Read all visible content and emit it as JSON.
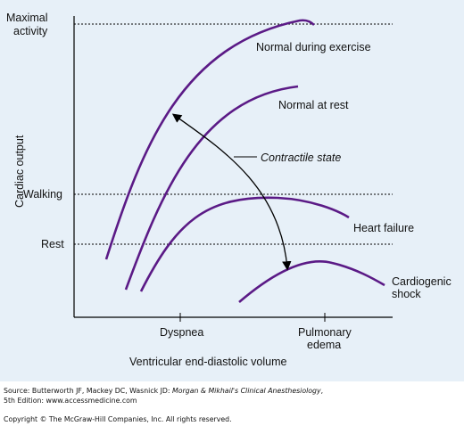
{
  "chart_data": {
    "type": "line",
    "title": "",
    "xlabel": "Ventricular end-diastolic volume",
    "ylabel": "Cardiac output",
    "x_ticks": [
      "Dyspnea",
      "Pulmonary edema"
    ],
    "y_levels": [
      "Maximal activity",
      "Walking",
      "Rest"
    ],
    "grid": false,
    "series": [
      {
        "name": "Normal during exercise",
        "points": [
          [
            0.18,
            0.23
          ],
          [
            0.24,
            0.45
          ],
          [
            0.3,
            0.64
          ],
          [
            0.36,
            0.77
          ],
          [
            0.44,
            0.89
          ],
          [
            0.51,
            0.96
          ],
          [
            0.56,
            1.0
          ],
          [
            0.6,
            0.99
          ]
        ]
      },
      {
        "name": "Normal at rest",
        "points": [
          [
            0.21,
            0.1
          ],
          [
            0.26,
            0.31
          ],
          [
            0.31,
            0.48
          ],
          [
            0.37,
            0.61
          ],
          [
            0.45,
            0.72
          ],
          [
            0.53,
            0.79
          ],
          [
            0.57,
            0.81
          ]
        ]
      },
      {
        "name": "Heart failure",
        "points": [
          [
            0.27,
            0.11
          ],
          [
            0.32,
            0.24
          ],
          [
            0.38,
            0.33
          ],
          [
            0.45,
            0.41
          ],
          [
            0.52,
            0.45
          ],
          [
            0.58,
            0.45
          ],
          [
            0.64,
            0.42
          ],
          [
            0.7,
            0.38
          ]
        ]
      },
      {
        "name": "Cardiogenic shock",
        "points": [
          [
            0.46,
            0.06
          ],
          [
            0.52,
            0.13
          ],
          [
            0.58,
            0.19
          ],
          [
            0.64,
            0.2
          ],
          [
            0.7,
            0.18
          ],
          [
            0.76,
            0.13
          ],
          [
            0.8,
            0.1
          ]
        ]
      }
    ],
    "annotation": "Contractile state",
    "colors": {
      "curve": "#5b1a86",
      "reference": "#000000",
      "background": "#e7f0f8"
    }
  },
  "labels": {
    "maximal_line1": "Maximal",
    "maximal_line2": "activity",
    "walking": "Walking",
    "rest": "Rest",
    "ylabel": "Cardiac output",
    "dyspnea": "Dyspnea",
    "pulmonary_line1": "Pulmonary",
    "pulmonary_line2": "edema",
    "xlabel": "Ventricular end-diastolic volume",
    "exercise": "Normal during exercise",
    "rest_curve": "Normal at rest",
    "heart_failure": "Heart failure",
    "shock_line1": "Cardiogenic",
    "shock_line2": "shock",
    "contractile": "Contractile state"
  },
  "source": {
    "prefix": "Source: Butterworth JF, Mackey DC, Wasnick JD: ",
    "book_title": "Morgan & Mikhail's Clinical Anesthesiology",
    "suffix": ",",
    "edition_line": "5th Edition: www.accessmedicine.com"
  },
  "copyright": "Copyright © The McGraw-Hill Companies, Inc. All rights reserved."
}
